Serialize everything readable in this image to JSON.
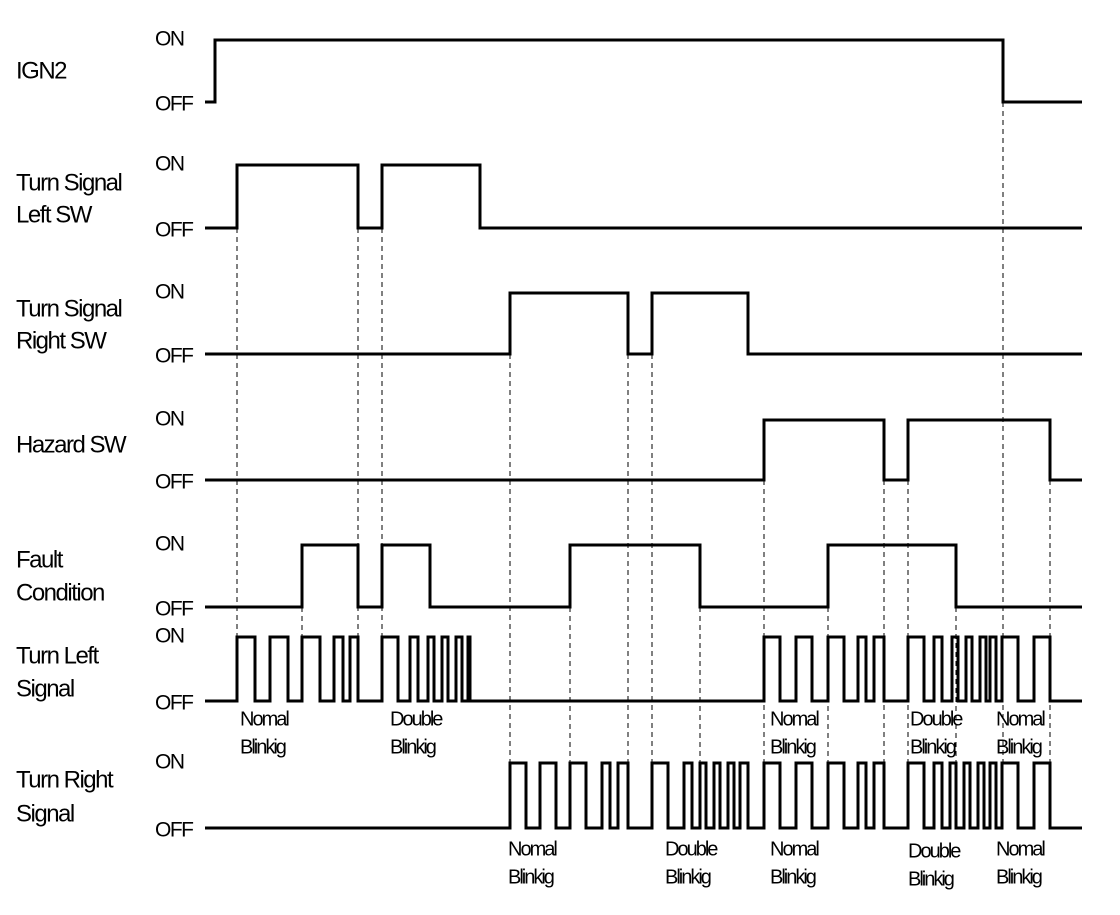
{
  "signals": [
    {
      "label": [
        "IGN2"
      ],
      "on": "ON",
      "off": "OFF"
    },
    {
      "label": [
        "Turn Signal",
        "Left SW"
      ],
      "on": "ON",
      "off": "OFF"
    },
    {
      "label": [
        "Turn Signal",
        "Right SW"
      ],
      "on": "ON",
      "off": "OFF"
    },
    {
      "label": [
        "Hazard SW"
      ],
      "on": "ON",
      "off": "OFF"
    },
    {
      "label": [
        "Fault",
        "Condition"
      ],
      "on": "ON",
      "off": "OFF"
    },
    {
      "label": [
        "Turn Left",
        "Signal"
      ],
      "on": "ON",
      "off": "OFF"
    },
    {
      "label": [
        "Turn Right",
        "Signal"
      ],
      "on": "ON",
      "off": "OFF"
    }
  ],
  "annotations": [
    [
      "Nomal",
      "Blinkig"
    ],
    [
      "Double",
      "Blinkig"
    ],
    [
      "Nomal",
      "Blinkig"
    ],
    [
      "Double",
      "Blinkig"
    ],
    [
      "Nomal",
      "Blinkig"
    ],
    [
      "Nomal",
      "Blinkig"
    ],
    [
      "Double",
      "Blinkig"
    ],
    [
      "Nomal",
      "Blinkig"
    ],
    [
      "Double",
      "Blinkig"
    ],
    [
      "Nomal",
      "Blinkig"
    ]
  ]
}
